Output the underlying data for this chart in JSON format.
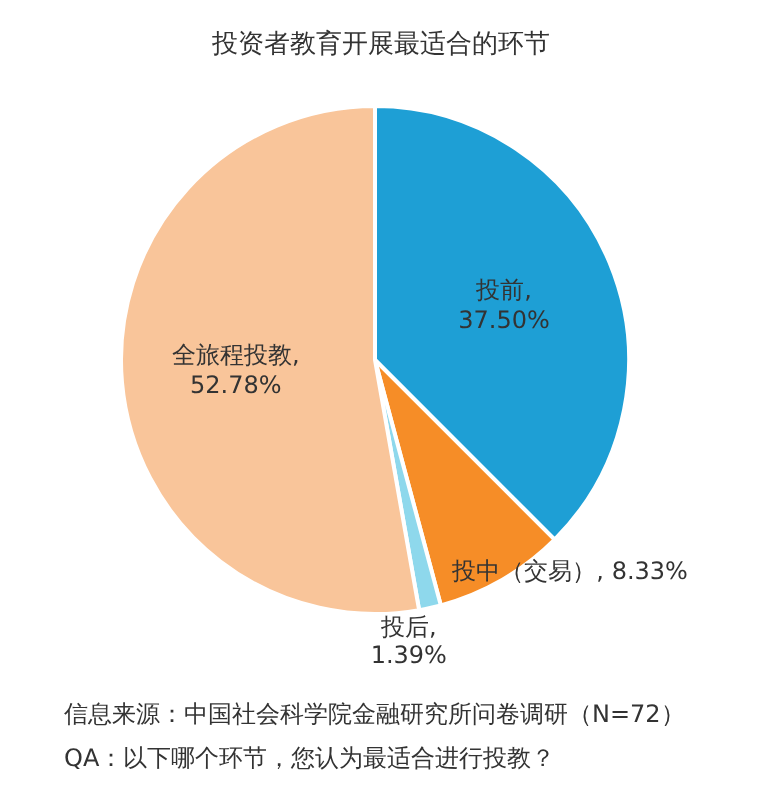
{
  "chart_data": {
    "type": "pie",
    "title": "投资者教育开展最适合的环节",
    "categories": [
      "投前",
      "投中（交易）",
      "投后",
      "全旅程投教"
    ],
    "values": [
      37.5,
      8.33,
      1.39,
      52.78
    ],
    "value_labels": [
      ", 37.50%",
      ", 8.33%",
      ", 1.39%",
      ", 52.78%"
    ],
    "colors": [
      "#1e9fd5",
      "#f68d27",
      "#8ed8ec",
      "#f9c59a"
    ],
    "legend": false,
    "annotations": [
      "信息来源：中国社会科学院金融研究所问卷调研（N=72）",
      "QA：以下哪个环节，您认为最适合进行投教？"
    ]
  }
}
